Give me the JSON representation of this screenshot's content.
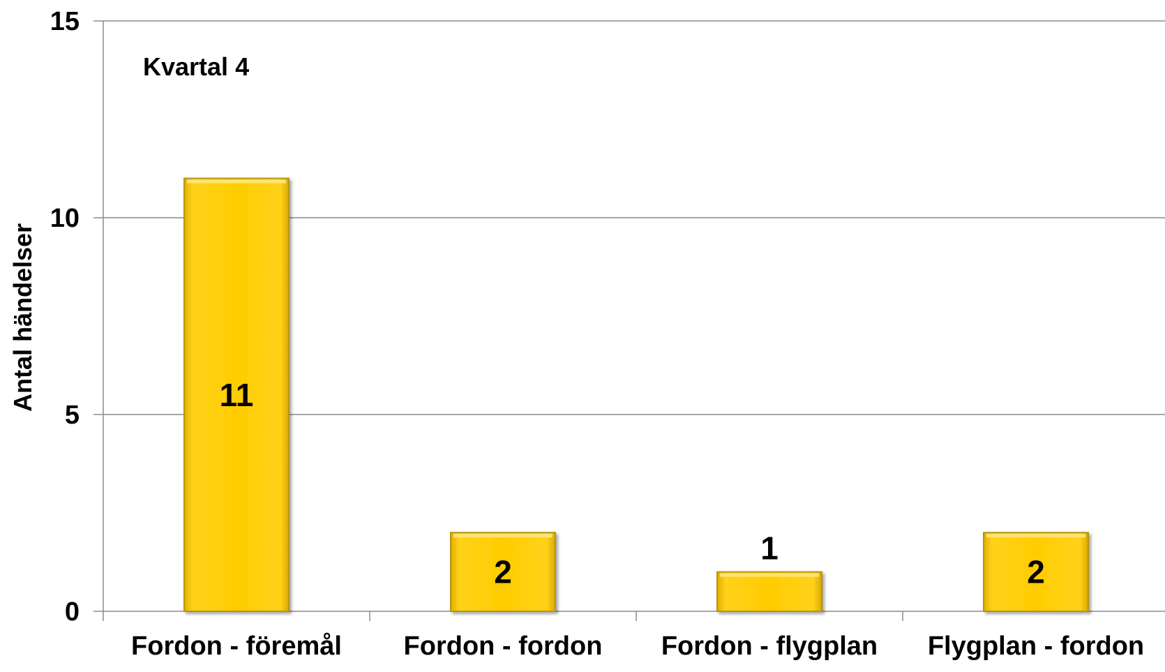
{
  "chart_data": {
    "type": "bar",
    "categories": [
      "Fordon - föremål",
      "Fordon - fordon",
      "Fordon - flygplan",
      "Flygplan - fordon"
    ],
    "values": [
      11,
      2,
      1,
      2
    ],
    "data_labels": [
      "11",
      "2",
      "1",
      "2"
    ],
    "annotation": "Kvartal 4",
    "xlabel": "",
    "ylabel": "Antal händelser",
    "ylim": [
      0,
      15
    ],
    "yticks": [
      0,
      5,
      10,
      15
    ],
    "grid": true,
    "bar_color": "#FFCC00",
    "bar_edge_color": "#B8960C"
  }
}
